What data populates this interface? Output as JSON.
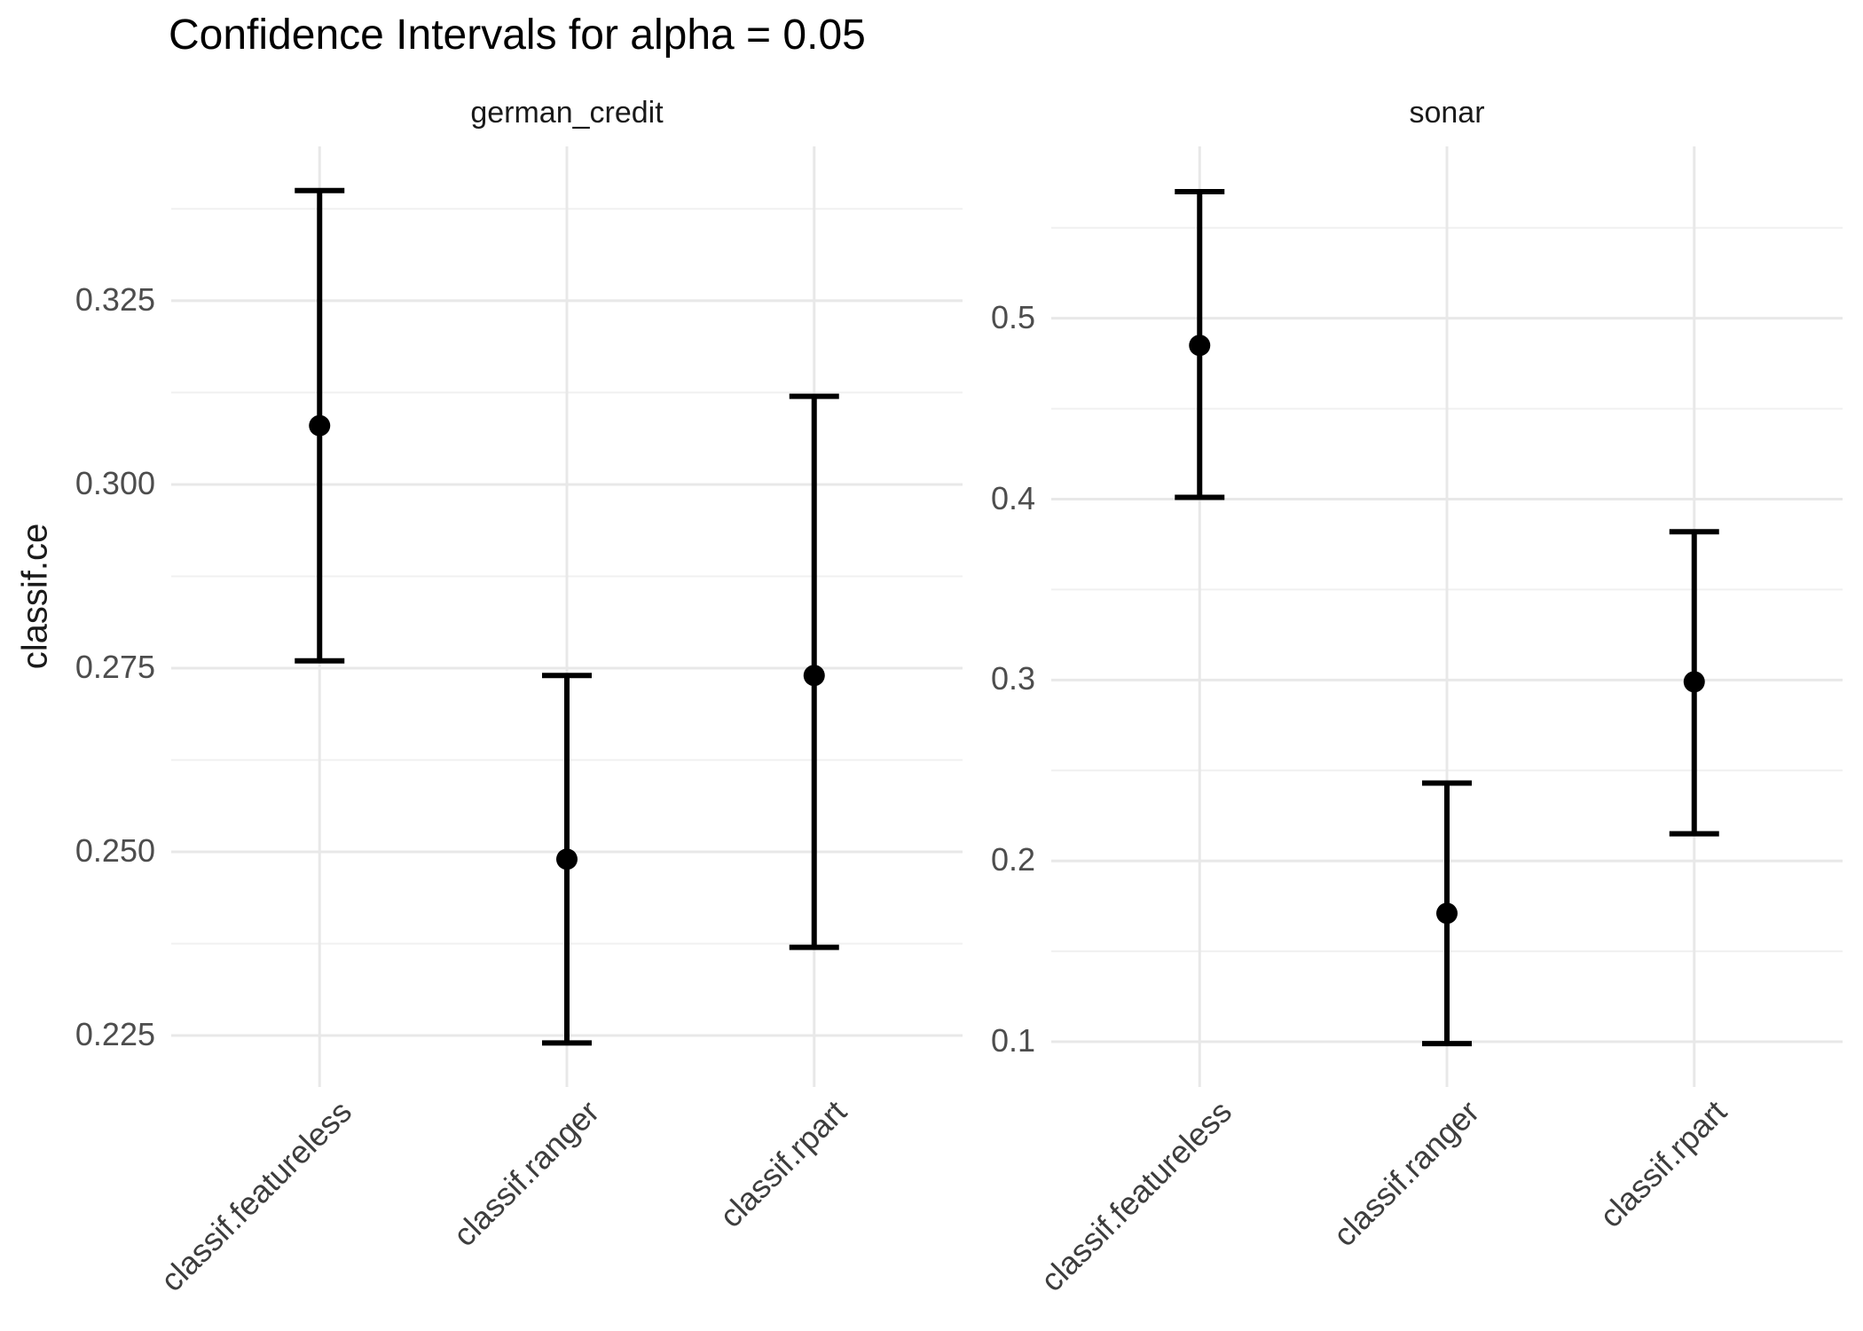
{
  "chart_data": {
    "type": "scatter",
    "subtype": "point-with-confidence-interval-errorbars",
    "title": "Confidence Intervals for alpha = 0.05",
    "ylabel": "classif.ce",
    "legend": "none",
    "grid": "major and minor horizontal, major vertical at categories",
    "categories": [
      "classif.featureless",
      "classif.ranger",
      "classif.rpart"
    ],
    "facets": [
      {
        "label": "german_credit",
        "ylim": [
          0.218,
          0.346
        ],
        "major_ticks": [
          {
            "value": 0.225,
            "label": "0.225"
          },
          {
            "value": 0.25,
            "label": "0.250"
          },
          {
            "value": 0.275,
            "label": "0.275"
          },
          {
            "value": 0.3,
            "label": "0.300"
          },
          {
            "value": 0.325,
            "label": "0.325"
          }
        ],
        "minor_ticks": [
          0.2375,
          0.2625,
          0.2875,
          0.3125,
          0.3375
        ],
        "points": [
          {
            "learner": "classif.featureless",
            "mean": 0.308,
            "lower": 0.276,
            "upper": 0.34
          },
          {
            "learner": "classif.ranger",
            "mean": 0.249,
            "lower": 0.224,
            "upper": 0.274
          },
          {
            "learner": "classif.rpart",
            "mean": 0.274,
            "lower": 0.237,
            "upper": 0.312
          }
        ]
      },
      {
        "label": "sonar",
        "ylim": [
          0.075,
          0.595
        ],
        "major_ticks": [
          {
            "value": 0.1,
            "label": "0.1"
          },
          {
            "value": 0.2,
            "label": "0.2"
          },
          {
            "value": 0.3,
            "label": "0.3"
          },
          {
            "value": 0.4,
            "label": "0.4"
          },
          {
            "value": 0.5,
            "label": "0.5"
          }
        ],
        "minor_ticks": [
          0.15,
          0.25,
          0.35,
          0.45,
          0.55
        ],
        "points": [
          {
            "learner": "classif.featureless",
            "mean": 0.485,
            "lower": 0.401,
            "upper": 0.57
          },
          {
            "learner": "classif.ranger",
            "mean": 0.171,
            "lower": 0.099,
            "upper": 0.243
          },
          {
            "learner": "classif.rpart",
            "mean": 0.299,
            "lower": 0.215,
            "upper": 0.382
          }
        ]
      }
    ],
    "colors": {
      "point": "#000000",
      "errorbar": "#000000",
      "grid_major": "#e8e8e8",
      "grid_minor": "#f0f0f0",
      "tick_text": "#4d4d4d",
      "background": "#ffffff"
    }
  }
}
